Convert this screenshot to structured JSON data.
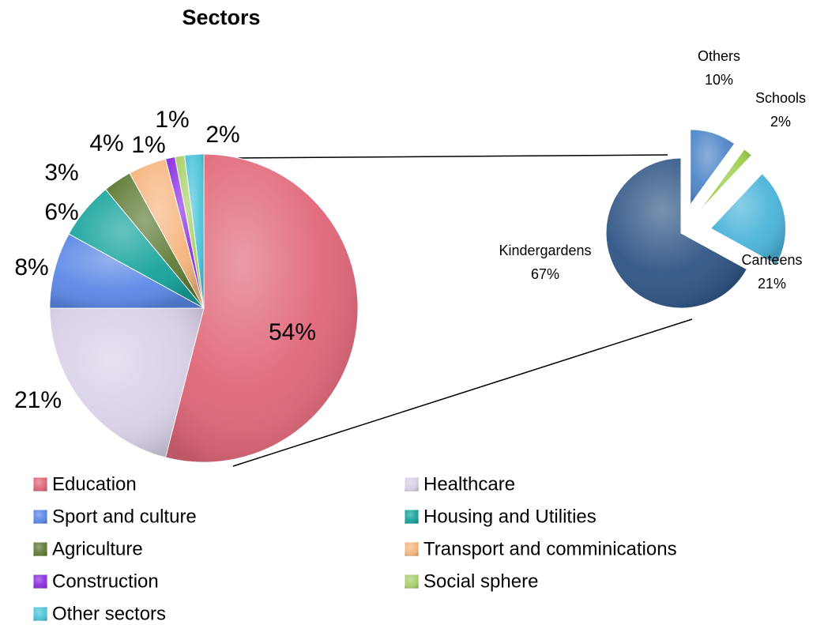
{
  "chart_data": [
    {
      "type": "pie",
      "title": "Sectors",
      "categories": [
        "Education",
        "Healthcare",
        "Sport and culture",
        "Housing and Utilities",
        "Agriculture",
        "Transport and comminications",
        "Construction",
        "Social sphere",
        "Other sectors"
      ],
      "values": [
        54,
        21,
        8,
        6,
        3,
        4,
        1,
        1,
        2
      ],
      "value_labels": [
        "54%",
        "21%",
        "8%",
        "6%",
        "3%",
        "4%",
        "1%",
        "1%",
        "2%"
      ],
      "colors": [
        "#e06678",
        "#d9d0e6",
        "#5b87e6",
        "#14a39b",
        "#5e7b35",
        "#f6b57e",
        "#8b2fe0",
        "#a9d06b",
        "#4dc5da"
      ],
      "legend": "bottom"
    },
    {
      "type": "pie",
      "categories": [
        "Others",
        "Schools",
        "Canteens",
        "Kindergardens"
      ],
      "values": [
        10,
        2,
        21,
        67
      ],
      "value_labels": [
        "10%",
        "2%",
        "21%",
        "67%"
      ],
      "colors": [
        "#4f86c8",
        "#9ccc4a",
        "#4ab4d9",
        "#2f5585"
      ]
    }
  ]
}
